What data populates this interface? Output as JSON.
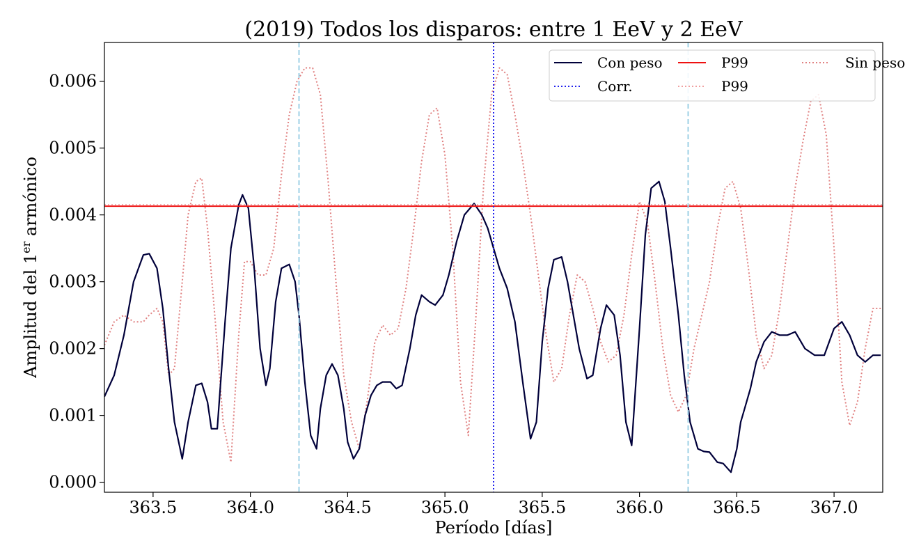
{
  "chart_data": {
    "type": "line",
    "title": "(2019) Todos los disparos: entre 1 EeV y 2 EeV",
    "xlabel": "Período [días]",
    "ylabel_main": "Amplitud del 1",
    "ylabel_sup": "er",
    "ylabel_end": " armónico",
    "xlim": [
      363.25,
      367.25
    ],
    "ylim": [
      -0.00015,
      0.00658
    ],
    "x_ticks": [
      363.5,
      364.0,
      364.5,
      365.0,
      365.5,
      366.0,
      366.5,
      367.0
    ],
    "x_tick_labels": [
      "363.5",
      "364.0",
      "364.5",
      "365.0",
      "365.5",
      "366.0",
      "366.5",
      "367.0"
    ],
    "y_ticks": [
      0.0,
      0.001,
      0.002,
      0.003,
      0.004,
      0.005,
      0.006
    ],
    "y_tick_labels": [
      "0.000",
      "0.001",
      "0.002",
      "0.003",
      "0.004",
      "0.005",
      "0.006"
    ],
    "grid": false,
    "legend_placement": "top-right",
    "legend": [
      {
        "label": "Con peso",
        "color": "#00003a",
        "style": "solid"
      },
      {
        "label": "P99",
        "color": "#ee1111",
        "style": "solid"
      },
      {
        "label": "Sin peso",
        "color": "#e08080",
        "style": "dotted"
      },
      {
        "label": "Corr.",
        "color": "#2222ee",
        "style": "dotted"
      },
      {
        "label": "P99",
        "color": "#f0a0a0",
        "style": "dotted"
      }
    ],
    "hlines": [
      {
        "series": "P99 (Con peso)",
        "y": 0.00413,
        "color": "#ee1111",
        "style": "solid"
      },
      {
        "series": "P99 (Sin peso)",
        "y": 0.00415,
        "color": "#f0a0a0",
        "style": "dotted"
      }
    ],
    "vlines": [
      {
        "x": 364.25,
        "color": "#9ed0e6",
        "style": "dashed"
      },
      {
        "x": 365.25,
        "color": "#2222ee",
        "style": "dotted"
      },
      {
        "x": 366.25,
        "color": "#9ed0e6",
        "style": "dashed"
      }
    ],
    "series": [
      {
        "name": "Con peso",
        "color": "#00003a",
        "style": "solid",
        "x": [
          363.25,
          363.3,
          363.35,
          363.4,
          363.45,
          363.48,
          363.52,
          363.55,
          363.58,
          363.61,
          363.65,
          363.68,
          363.72,
          363.75,
          363.78,
          363.8,
          363.83,
          363.87,
          363.9,
          363.94,
          363.96,
          363.99,
          364.02,
          364.05,
          364.08,
          364.1,
          364.13,
          364.16,
          364.2,
          364.23,
          364.25,
          364.28,
          364.31,
          364.34,
          364.36,
          364.39,
          364.42,
          364.45,
          364.48,
          364.5,
          364.53,
          364.56,
          364.59,
          364.62,
          364.65,
          364.68,
          364.72,
          364.75,
          364.78,
          364.82,
          364.85,
          364.88,
          364.92,
          364.95,
          364.99,
          365.02,
          365.06,
          365.1,
          365.15,
          365.19,
          365.22,
          365.25,
          365.28,
          365.32,
          365.36,
          365.4,
          365.44,
          365.47,
          365.5,
          365.53,
          365.56,
          365.6,
          365.63,
          365.66,
          365.69,
          365.73,
          365.76,
          365.8,
          365.83,
          365.87,
          365.9,
          365.93,
          365.96,
          366.0,
          366.03,
          366.06,
          366.1,
          366.13,
          366.16,
          366.2,
          366.23,
          366.26,
          366.3,
          366.33,
          366.36,
          366.4,
          366.43,
          366.47,
          366.5,
          366.52,
          366.54,
          366.57,
          366.6,
          366.64,
          366.68,
          366.72,
          366.76,
          366.8,
          366.85,
          366.9,
          366.95,
          367.0,
          367.04,
          367.08,
          367.12,
          367.16,
          367.2,
          367.24
        ],
        "values": [
          0.00128,
          0.0016,
          0.0022,
          0.003,
          0.0034,
          0.00342,
          0.0032,
          0.0026,
          0.0017,
          0.0009,
          0.00035,
          0.0009,
          0.00145,
          0.00148,
          0.0012,
          0.0008,
          0.0008,
          0.0024,
          0.0035,
          0.00415,
          0.0043,
          0.0041,
          0.0032,
          0.002,
          0.00145,
          0.0017,
          0.0027,
          0.0032,
          0.00326,
          0.003,
          0.0025,
          0.0015,
          0.0007,
          0.0005,
          0.0011,
          0.0016,
          0.00177,
          0.0016,
          0.0011,
          0.0006,
          0.00035,
          0.0005,
          0.001,
          0.0013,
          0.00145,
          0.0015,
          0.0015,
          0.0014,
          0.00145,
          0.002,
          0.0025,
          0.0028,
          0.0027,
          0.00265,
          0.0028,
          0.0031,
          0.0036,
          0.004,
          0.00417,
          0.004,
          0.0038,
          0.0035,
          0.0032,
          0.0029,
          0.0024,
          0.0015,
          0.00065,
          0.0009,
          0.0021,
          0.0029,
          0.00333,
          0.00337,
          0.003,
          0.0025,
          0.002,
          0.00155,
          0.0016,
          0.0023,
          0.00265,
          0.0025,
          0.0019,
          0.0009,
          0.00055,
          0.0023,
          0.0037,
          0.0044,
          0.0045,
          0.0042,
          0.0035,
          0.0025,
          0.0016,
          0.0009,
          0.0005,
          0.00046,
          0.00045,
          0.0003,
          0.00028,
          0.00015,
          0.0005,
          0.0009,
          0.0011,
          0.0014,
          0.0018,
          0.0021,
          0.00225,
          0.0022,
          0.0022,
          0.00225,
          0.002,
          0.0019,
          0.0019,
          0.0023,
          0.0024,
          0.0022,
          0.0019,
          0.0018,
          0.0019,
          0.0019
        ]
      },
      {
        "name": "Sin peso",
        "color": "#e08080",
        "style": "dotted",
        "x": [
          363.25,
          363.3,
          363.35,
          363.4,
          363.45,
          363.48,
          363.52,
          363.55,
          363.58,
          363.61,
          363.65,
          363.68,
          363.72,
          363.75,
          363.78,
          363.82,
          363.86,
          363.9,
          363.94,
          363.97,
          364.0,
          364.04,
          364.08,
          364.12,
          364.16,
          364.2,
          364.24,
          364.28,
          364.32,
          364.36,
          364.4,
          364.44,
          364.48,
          364.52,
          364.56,
          364.6,
          364.64,
          364.68,
          364.72,
          364.76,
          364.8,
          364.84,
          364.88,
          364.92,
          364.96,
          365.0,
          365.04,
          365.08,
          365.12,
          365.16,
          365.2,
          365.24,
          365.28,
          365.32,
          365.36,
          365.4,
          365.44,
          365.48,
          365.52,
          365.56,
          365.6,
          365.64,
          365.68,
          365.72,
          365.76,
          365.8,
          365.84,
          365.88,
          365.92,
          365.96,
          366.0,
          366.04,
          366.08,
          366.12,
          366.16,
          366.2,
          366.24,
          366.28,
          366.32,
          366.36,
          366.4,
          366.44,
          366.48,
          366.52,
          366.56,
          366.6,
          366.64,
          366.68,
          366.72,
          366.76,
          366.8,
          366.84,
          366.88,
          366.92,
          366.96,
          367.0,
          367.04,
          367.08,
          367.12,
          367.16,
          367.2,
          367.24
        ],
        "values": [
          0.00205,
          0.0024,
          0.0025,
          0.0024,
          0.0024,
          0.0025,
          0.0026,
          0.0024,
          0.0016,
          0.0017,
          0.003,
          0.004,
          0.0045,
          0.00455,
          0.0038,
          0.0024,
          0.0009,
          0.0003,
          0.0022,
          0.0033,
          0.0033,
          0.0031,
          0.0031,
          0.0035,
          0.0046,
          0.0055,
          0.006,
          0.0062,
          0.0062,
          0.0058,
          0.0045,
          0.003,
          0.0016,
          0.0009,
          0.0005,
          0.0012,
          0.0021,
          0.00235,
          0.0022,
          0.0023,
          0.0029,
          0.0038,
          0.0048,
          0.0055,
          0.0056,
          0.0049,
          0.0035,
          0.0015,
          0.0007,
          0.0025,
          0.0045,
          0.0058,
          0.0062,
          0.0061,
          0.0055,
          0.0048,
          0.004,
          0.0031,
          0.0022,
          0.0015,
          0.0017,
          0.0025,
          0.0031,
          0.003,
          0.0026,
          0.0021,
          0.0018,
          0.0019,
          0.0025,
          0.0034,
          0.0042,
          0.0039,
          0.003,
          0.002,
          0.0013,
          0.00105,
          0.0013,
          0.002,
          0.0025,
          0.003,
          0.0038,
          0.0044,
          0.0045,
          0.0041,
          0.0032,
          0.0022,
          0.0017,
          0.0019,
          0.0026,
          0.0035,
          0.0044,
          0.0051,
          0.0057,
          0.0058,
          0.0052,
          0.0035,
          0.0015,
          0.00085,
          0.0012,
          0.002,
          0.0026,
          0.0026
        ]
      }
    ]
  }
}
